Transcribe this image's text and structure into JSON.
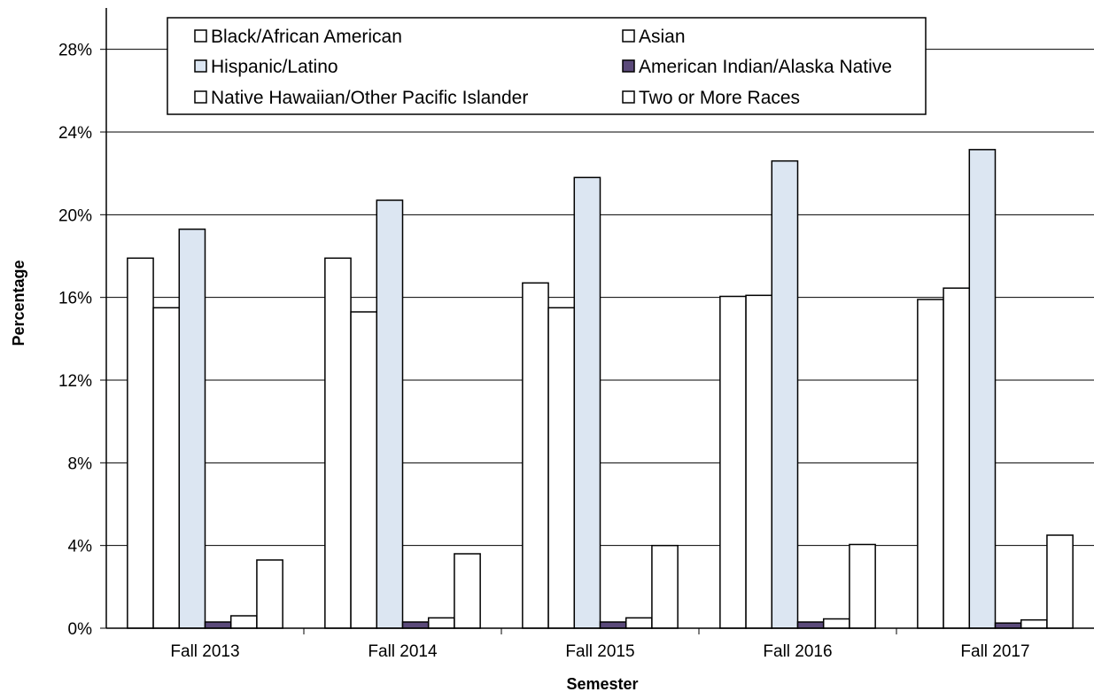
{
  "chart_data": {
    "type": "bar",
    "title": "",
    "xlabel": "Semester",
    "ylabel": "Percentage",
    "categories": [
      "Fall 2013",
      "Fall 2014",
      "Fall 2015",
      "Fall 2016",
      "Fall 2017"
    ],
    "ylim": [
      0,
      30
    ],
    "yticks": [
      0,
      4,
      8,
      12,
      16,
      20,
      24,
      28
    ],
    "ytick_labels": [
      "0%",
      "4%",
      "8%",
      "12%",
      "16%",
      "20%",
      "24%",
      "28%"
    ],
    "grid": true,
    "legend_position": "top",
    "series": [
      {
        "name": "Black/African American",
        "color": "#ffffff",
        "values": [
          17.9,
          17.9,
          16.7,
          16.05,
          15.9
        ]
      },
      {
        "name": "Asian",
        "color": "#ffffff",
        "values": [
          15.5,
          15.3,
          15.5,
          16.1,
          16.45
        ]
      },
      {
        "name": "Hispanic/Latino",
        "color": "#dce6f2",
        "values": [
          19.3,
          20.7,
          21.8,
          22.6,
          23.15
        ]
      },
      {
        "name": "American Indian/Alaska Native",
        "color": "#5b4a7a",
        "values": [
          0.3,
          0.3,
          0.3,
          0.3,
          0.25
        ]
      },
      {
        "name": "Native Hawaiian/Other Pacific Islander",
        "color": "#ffffff",
        "values": [
          0.6,
          0.5,
          0.5,
          0.45,
          0.4
        ]
      },
      {
        "name": "Two or More Races",
        "color": "#ffffff",
        "values": [
          3.3,
          3.6,
          4.0,
          4.05,
          4.5
        ]
      }
    ]
  }
}
